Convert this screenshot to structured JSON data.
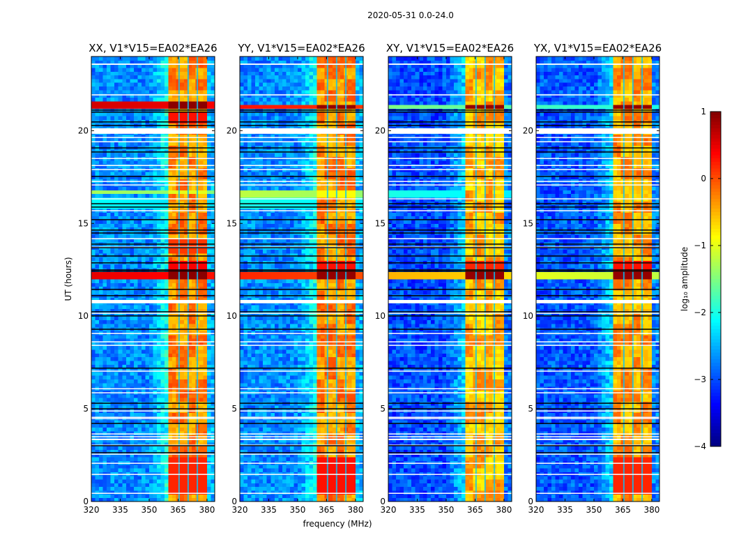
{
  "suptitle": "2020-05-31 0.0-24.0",
  "chart_data": {
    "type": "heatmap",
    "title": "2020-05-31 0.0-24.0",
    "xlabel": "frequency (MHz)",
    "ylabel": "UT (hours)",
    "xlim": [
      320,
      384
    ],
    "ylim": [
      0,
      24
    ],
    "xticks": [
      320,
      335,
      350,
      365,
      380
    ],
    "yticks": [
      0,
      5,
      10,
      15,
      20
    ],
    "colorbar": {
      "label": "log₁₀ amplitude",
      "range": [
        -4,
        1
      ],
      "ticks": [
        1,
        0,
        -1,
        -2,
        -3,
        -4
      ],
      "tick_labels": [
        "1",
        "0",
        "−1",
        "−2",
        "−3",
        "−4"
      ],
      "colormap": "jet"
    },
    "rfi_band_mhz": [
      360,
      380
    ],
    "rfi_channel_gaps_mhz": [
      365.5,
      370.2,
      375.0
    ],
    "flagged_rows_white_hours": [
      [
        23.55,
        23.62
      ],
      [
        21.9,
        21.96
      ],
      [
        19.83,
        20.13
      ],
      [
        19.62,
        19.66
      ],
      [
        19.39,
        19.43
      ],
      [
        18.49,
        18.53
      ],
      [
        18.11,
        18.15
      ],
      [
        17.89,
        17.93
      ],
      [
        17.25,
        17.29
      ],
      [
        17.06,
        17.1
      ],
      [
        16.31,
        16.35
      ],
      [
        15.67,
        15.71
      ],
      [
        14.16,
        14.2
      ],
      [
        13.71,
        13.75
      ],
      [
        10.69,
        10.87
      ],
      [
        10.14,
        10.18
      ],
      [
        9.05,
        9.09
      ],
      [
        8.6,
        8.64
      ],
      [
        8.41,
        8.45
      ],
      [
        7.02,
        7.06
      ],
      [
        6.07,
        6.11
      ],
      [
        5.85,
        5.89
      ],
      [
        4.87,
        4.91
      ],
      [
        4.53,
        4.57
      ],
      [
        4.46,
        4.5
      ],
      [
        3.63,
        3.67
      ],
      [
        3.48,
        3.52
      ],
      [
        3.31,
        3.39
      ],
      [
        3.03,
        3.07
      ],
      [
        2.54,
        2.58
      ],
      [
        2.05,
        2.09
      ],
      [
        1.45,
        1.49
      ],
      [
        0.43,
        0.47
      ]
    ],
    "null_rows_black_hours": [
      21.11,
      21.0,
      20.47,
      20.28,
      19.07,
      18.85,
      17.53,
      16.06,
      15.88,
      15.2,
      14.64,
      14.48,
      13.88,
      13.69,
      13.24,
      12.87,
      12.49,
      12.42,
      11.44,
      11.1,
      10.23,
      10.01,
      9.29,
      7.19,
      5.3,
      5.0,
      4.21,
      3.01,
      2.63
    ],
    "panels": [
      {
        "title": "XX, V1*V15=EA02*EA26",
        "background_level": -2.7,
        "rfi_level": -0.5,
        "bands": [
          {
            "hours": [
              21.15,
              21.6
            ],
            "background": 0.6,
            "rfi": 0.95
          },
          {
            "hours": [
              20.5,
              21.0
            ],
            "background": null,
            "rfi": 0.3
          },
          {
            "hours": [
              16.55,
              16.85
            ],
            "background": -1.3,
            "rfi": -1.0
          },
          {
            "hours": [
              15.9,
              16.5
            ],
            "background": -2.1,
            "rfi": null
          },
          {
            "hours": [
              12.1,
              12.4
            ],
            "background": 0.5,
            "rfi": 0.95
          },
          {
            "hours": [
              12.5,
              13.0
            ],
            "background": null,
            "rfi": 0.4
          },
          {
            "hours": [
              13.4,
              14.1
            ],
            "background": null,
            "rfi": 0.1
          },
          {
            "hours": [
              0.5,
              2.5
            ],
            "background": null,
            "rfi": 0.2
          }
        ]
      },
      {
        "title": "YY, V1*V15=EA02*EA26",
        "background_level": -2.7,
        "rfi_level": -0.5,
        "bands": [
          {
            "hours": [
              21.2,
              21.5
            ],
            "background": 0.3,
            "rfi": 0.9
          },
          {
            "hours": [
              16.5,
              16.9
            ],
            "background": -1.2,
            "rfi": -0.9
          },
          {
            "hours": [
              15.9,
              16.5
            ],
            "background": -2.0,
            "rfi": null
          },
          {
            "hours": [
              12.1,
              12.3
            ],
            "background": 0.2,
            "rfi": 0.9
          },
          {
            "hours": [
              12.5,
              13.0
            ],
            "background": null,
            "rfi": 0.3
          },
          {
            "hours": [
              0.5,
              2.5
            ],
            "background": null,
            "rfi": 0.3
          }
        ]
      },
      {
        "title": "XY, V1*V15=EA02*EA26",
        "background_level": -3.0,
        "rfi_level": -0.7,
        "bands": [
          {
            "hours": [
              21.2,
              21.5
            ],
            "background": -1.5,
            "rfi": 0.9
          },
          {
            "hours": [
              16.5,
              16.9
            ],
            "background": -2.0,
            "rfi": null
          },
          {
            "hours": [
              12.1,
              12.3
            ],
            "background": -0.5,
            "rfi": 0.9
          },
          {
            "hours": [
              12.5,
              13.0
            ],
            "background": null,
            "rfi": 0.2
          }
        ]
      },
      {
        "title": "YX, V1*V15=EA02*EA26",
        "background_level": -2.95,
        "rfi_level": -0.6,
        "bands": [
          {
            "hours": [
              21.2,
              21.5
            ],
            "background": -1.8,
            "rfi": 0.9
          },
          {
            "hours": [
              12.1,
              12.3
            ],
            "background": -1.0,
            "rfi": 0.9
          },
          {
            "hours": [
              12.5,
              13.0
            ],
            "background": null,
            "rfi": 0.3
          },
          {
            "hours": [
              0.5,
              2.5
            ],
            "background": null,
            "rfi": 0.2
          }
        ]
      }
    ]
  }
}
